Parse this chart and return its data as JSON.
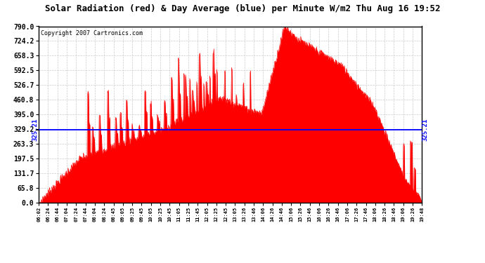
{
  "title": "Solar Radiation (red) & Day Average (blue) per Minute W/m2 Thu Aug 16 19:52",
  "copyright": "Copyright 2007 Cartronics.com",
  "day_average": 325.21,
  "ymin": 0.0,
  "ymax": 790.0,
  "yticks": [
    0.0,
    65.8,
    131.7,
    197.5,
    263.3,
    329.2,
    395.0,
    460.8,
    526.7,
    592.5,
    658.3,
    724.2,
    790.0
  ],
  "ytick_labels": [
    "0.0",
    "65.8",
    "131.7",
    "197.5",
    "263.3",
    "329.2",
    "395.0",
    "460.8",
    "526.7",
    "592.5",
    "658.3",
    "724.2",
    "790.0"
  ],
  "background_color": "#ffffff",
  "plot_bg_color": "#ffffff",
  "grid_color": "#cccccc",
  "fill_color": "#ff0000",
  "avg_line_color": "#0000ff",
  "x_tick_labels": [
    "06:02",
    "06:24",
    "06:44",
    "07:04",
    "07:24",
    "07:44",
    "08:04",
    "08:24",
    "08:45",
    "09:05",
    "09:25",
    "09:45",
    "10:05",
    "10:25",
    "10:45",
    "11:05",
    "11:25",
    "11:45",
    "12:05",
    "12:25",
    "12:45",
    "13:05",
    "13:26",
    "13:46",
    "14:06",
    "14:26",
    "14:46",
    "15:06",
    "15:26",
    "15:46",
    "16:06",
    "16:26",
    "16:46",
    "17:06",
    "17:26",
    "17:46",
    "18:06",
    "18:26",
    "18:46",
    "19:06",
    "19:26",
    "19:48"
  ]
}
